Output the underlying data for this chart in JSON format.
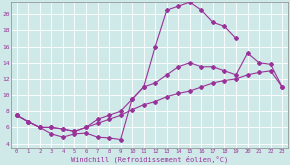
{
  "xlabel": "Windchill (Refroidissement éolien,°C)",
  "background_color": "#cfe8e8",
  "grid_color": "#b0d4d4",
  "line_color": "#993399",
  "xlim": [
    -0.5,
    23.5
  ],
  "ylim": [
    3.5,
    21.5
  ],
  "xticks": [
    0,
    1,
    2,
    3,
    4,
    5,
    6,
    7,
    8,
    9,
    10,
    11,
    12,
    13,
    14,
    15,
    16,
    17,
    18,
    19,
    20,
    21,
    22,
    23
  ],
  "yticks": [
    4,
    6,
    8,
    10,
    12,
    14,
    16,
    18,
    20
  ],
  "line1_x": [
    0,
    1,
    2,
    3,
    4,
    5,
    6,
    7,
    8,
    9,
    10,
    11,
    12,
    13,
    14,
    15,
    16,
    17,
    18,
    19
  ],
  "line1_y": [
    7.5,
    6.7,
    6.0,
    5.2,
    4.8,
    5.2,
    5.3,
    4.8,
    4.7,
    4.5,
    9.5,
    11.0,
    16.0,
    20.5,
    21.0,
    21.5,
    20.5,
    19.0,
    18.5,
    17.0
  ],
  "line2_x": [
    0,
    1,
    2,
    3,
    4,
    5,
    6,
    7,
    8,
    9,
    10,
    11,
    12,
    13,
    14,
    15,
    16,
    17,
    18,
    19,
    20,
    21,
    22,
    23
  ],
  "line2_y": [
    7.5,
    6.7,
    6.0,
    6.0,
    5.8,
    5.5,
    6.0,
    7.0,
    7.5,
    8.0,
    9.5,
    11.0,
    11.5,
    12.5,
    13.5,
    14.0,
    13.5,
    13.5,
    13.0,
    12.5,
    15.2,
    14.0,
    13.8,
    11.0
  ],
  "line3_x": [
    0,
    1,
    2,
    3,
    4,
    5,
    6,
    7,
    8,
    9,
    10,
    11,
    12,
    13,
    14,
    15,
    16,
    17,
    18,
    19,
    20,
    21,
    22,
    23
  ],
  "line3_y": [
    7.5,
    6.7,
    6.0,
    6.0,
    5.8,
    5.5,
    6.0,
    6.5,
    7.0,
    7.5,
    8.2,
    8.8,
    9.2,
    9.8,
    10.2,
    10.5,
    11.0,
    11.5,
    11.8,
    12.0,
    12.5,
    12.8,
    13.0,
    11.0
  ]
}
